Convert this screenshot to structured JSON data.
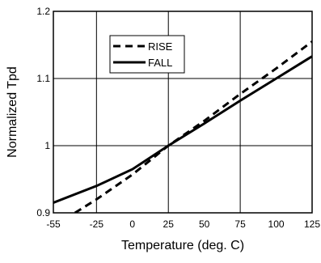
{
  "chart_data": {
    "type": "line",
    "xlabel": "Temperature (deg. C)",
    "ylabel": "Normalized Tpd",
    "xlim": [
      -55,
      125
    ],
    "ylim": [
      0.9,
      1.2
    ],
    "xticks": [
      -55,
      -25,
      0,
      25,
      50,
      75,
      100,
      125
    ],
    "yticks": [
      0.9,
      1,
      1.1,
      1.2
    ],
    "ytick_labels": [
      "0.9",
      "1",
      "1.1",
      "1.2"
    ],
    "grid": true,
    "legend_position": "top-center",
    "series": [
      {
        "name": "RISE",
        "line_style": "dashed",
        "color": "#000000",
        "x": [
          -40,
          -25,
          0,
          25,
          50,
          75,
          100,
          125
        ],
        "y": [
          0.9,
          0.92,
          0.957,
          1.0,
          1.037,
          1.077,
          1.115,
          1.155
        ]
      },
      {
        "name": "FALL",
        "line_style": "solid",
        "color": "#000000",
        "x": [
          -55,
          -25,
          0,
          25,
          50,
          75,
          100,
          125
        ],
        "y": [
          0.915,
          0.94,
          0.965,
          1.0,
          1.033,
          1.067,
          1.1,
          1.133
        ]
      }
    ]
  }
}
